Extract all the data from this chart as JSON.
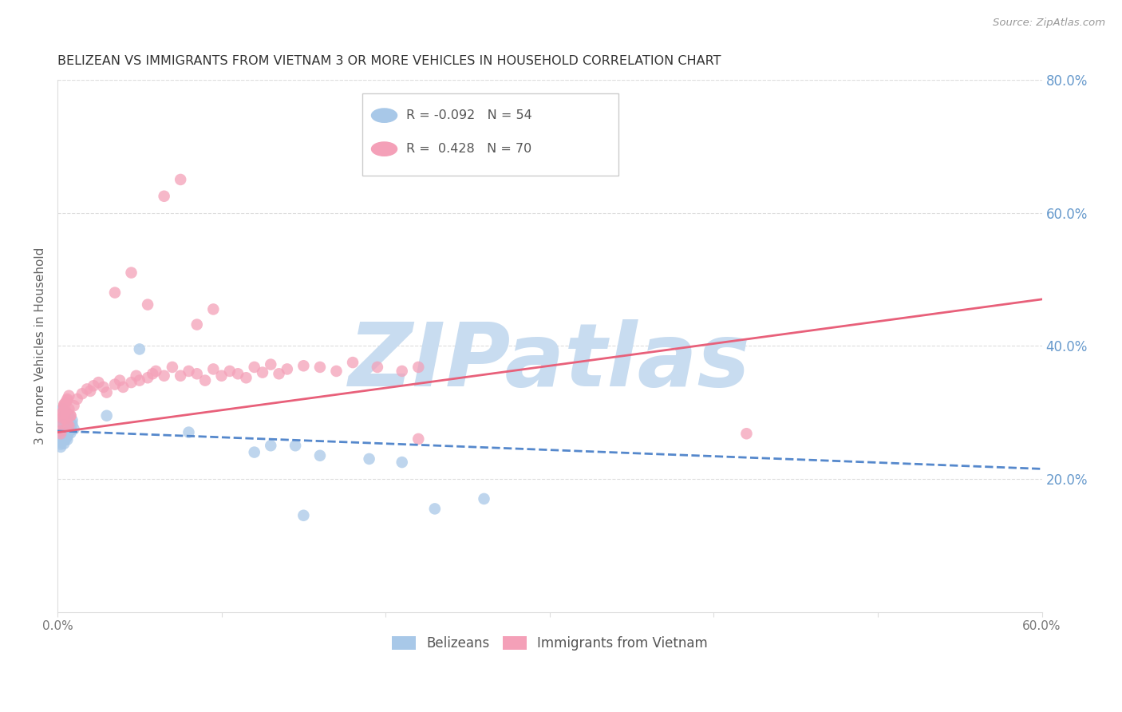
{
  "title": "BELIZEAN VS IMMIGRANTS FROM VIETNAM 3 OR MORE VEHICLES IN HOUSEHOLD CORRELATION CHART",
  "source": "Source: ZipAtlas.com",
  "ylabel": "3 or more Vehicles in Household",
  "watermark": "ZIPatlas",
  "xlim": [
    0.0,
    0.6
  ],
  "ylim": [
    0.0,
    0.8
  ],
  "xtick_vals": [
    0.0,
    0.1,
    0.2,
    0.3,
    0.4,
    0.5,
    0.6
  ],
  "xtick_labels": [
    "0.0%",
    "",
    "",
    "",
    "",
    "",
    "60.0%"
  ],
  "yticks_right": [
    0.2,
    0.4,
    0.6,
    0.8
  ],
  "ytick_labels_right": [
    "20.0%",
    "40.0%",
    "60.0%",
    "80.0%"
  ],
  "legend_label1": "Belizeans",
  "legend_label2": "Immigrants from Vietnam",
  "blue_color": "#A8C8E8",
  "pink_color": "#F4A0B8",
  "blue_line_color": "#5588CC",
  "pink_line_color": "#E8607A",
  "right_axis_color": "#6699CC",
  "title_color": "#333333",
  "source_color": "#999999",
  "watermark_color": "#C8DCF0",
  "blue_scatter_x": [
    0.002,
    0.003,
    0.003,
    0.003,
    0.004,
    0.004,
    0.004,
    0.005,
    0.005,
    0.005,
    0.005,
    0.006,
    0.006,
    0.006,
    0.007,
    0.007,
    0.007,
    0.008,
    0.008,
    0.009,
    0.002,
    0.003,
    0.004,
    0.005,
    0.006,
    0.007,
    0.008,
    0.002,
    0.003,
    0.004,
    0.005,
    0.006,
    0.007,
    0.008,
    0.009,
    0.01,
    0.002,
    0.003,
    0.004,
    0.005,
    0.006,
    0.007,
    0.03,
    0.05,
    0.08,
    0.12,
    0.145,
    0.16,
    0.19,
    0.21,
    0.23,
    0.26,
    0.13,
    0.15
  ],
  "blue_scatter_y": [
    0.285,
    0.29,
    0.305,
    0.265,
    0.28,
    0.295,
    0.27,
    0.3,
    0.285,
    0.275,
    0.26,
    0.29,
    0.278,
    0.268,
    0.295,
    0.285,
    0.272,
    0.283,
    0.275,
    0.288,
    0.255,
    0.27,
    0.262,
    0.278,
    0.265,
    0.28,
    0.273,
    0.252,
    0.267,
    0.258,
    0.271,
    0.264,
    0.277,
    0.269,
    0.282,
    0.275,
    0.248,
    0.26,
    0.253,
    0.266,
    0.259,
    0.272,
    0.295,
    0.395,
    0.27,
    0.24,
    0.25,
    0.235,
    0.23,
    0.225,
    0.155,
    0.17,
    0.25,
    0.145
  ],
  "pink_scatter_x": [
    0.002,
    0.003,
    0.004,
    0.005,
    0.006,
    0.007,
    0.008,
    0.002,
    0.003,
    0.004,
    0.005,
    0.006,
    0.007,
    0.008,
    0.002,
    0.003,
    0.004,
    0.005,
    0.006,
    0.007,
    0.01,
    0.012,
    0.015,
    0.018,
    0.02,
    0.022,
    0.025,
    0.028,
    0.03,
    0.035,
    0.038,
    0.04,
    0.045,
    0.048,
    0.05,
    0.055,
    0.058,
    0.06,
    0.065,
    0.07,
    0.075,
    0.08,
    0.085,
    0.09,
    0.095,
    0.1,
    0.105,
    0.11,
    0.115,
    0.12,
    0.125,
    0.13,
    0.135,
    0.14,
    0.15,
    0.16,
    0.17,
    0.18,
    0.195,
    0.21,
    0.22,
    0.035,
    0.045,
    0.055,
    0.065,
    0.075,
    0.085,
    0.095,
    0.42,
    0.22
  ],
  "pink_scatter_y": [
    0.285,
    0.3,
    0.31,
    0.29,
    0.32,
    0.28,
    0.295,
    0.272,
    0.298,
    0.308,
    0.315,
    0.282,
    0.305,
    0.295,
    0.268,
    0.292,
    0.312,
    0.302,
    0.318,
    0.325,
    0.31,
    0.32,
    0.328,
    0.335,
    0.332,
    0.34,
    0.345,
    0.338,
    0.33,
    0.342,
    0.348,
    0.338,
    0.345,
    0.355,
    0.348,
    0.352,
    0.358,
    0.362,
    0.355,
    0.368,
    0.355,
    0.362,
    0.358,
    0.348,
    0.365,
    0.355,
    0.362,
    0.358,
    0.352,
    0.368,
    0.36,
    0.372,
    0.358,
    0.365,
    0.37,
    0.368,
    0.362,
    0.375,
    0.368,
    0.362,
    0.368,
    0.48,
    0.51,
    0.462,
    0.625,
    0.65,
    0.432,
    0.455,
    0.268,
    0.26
  ],
  "blue_line_x0": 0.0,
  "blue_line_x1": 0.6,
  "blue_line_y0": 0.272,
  "blue_line_y1": 0.215,
  "pink_line_x0": 0.0,
  "pink_line_x1": 0.6,
  "pink_line_y0": 0.27,
  "pink_line_y1": 0.47
}
